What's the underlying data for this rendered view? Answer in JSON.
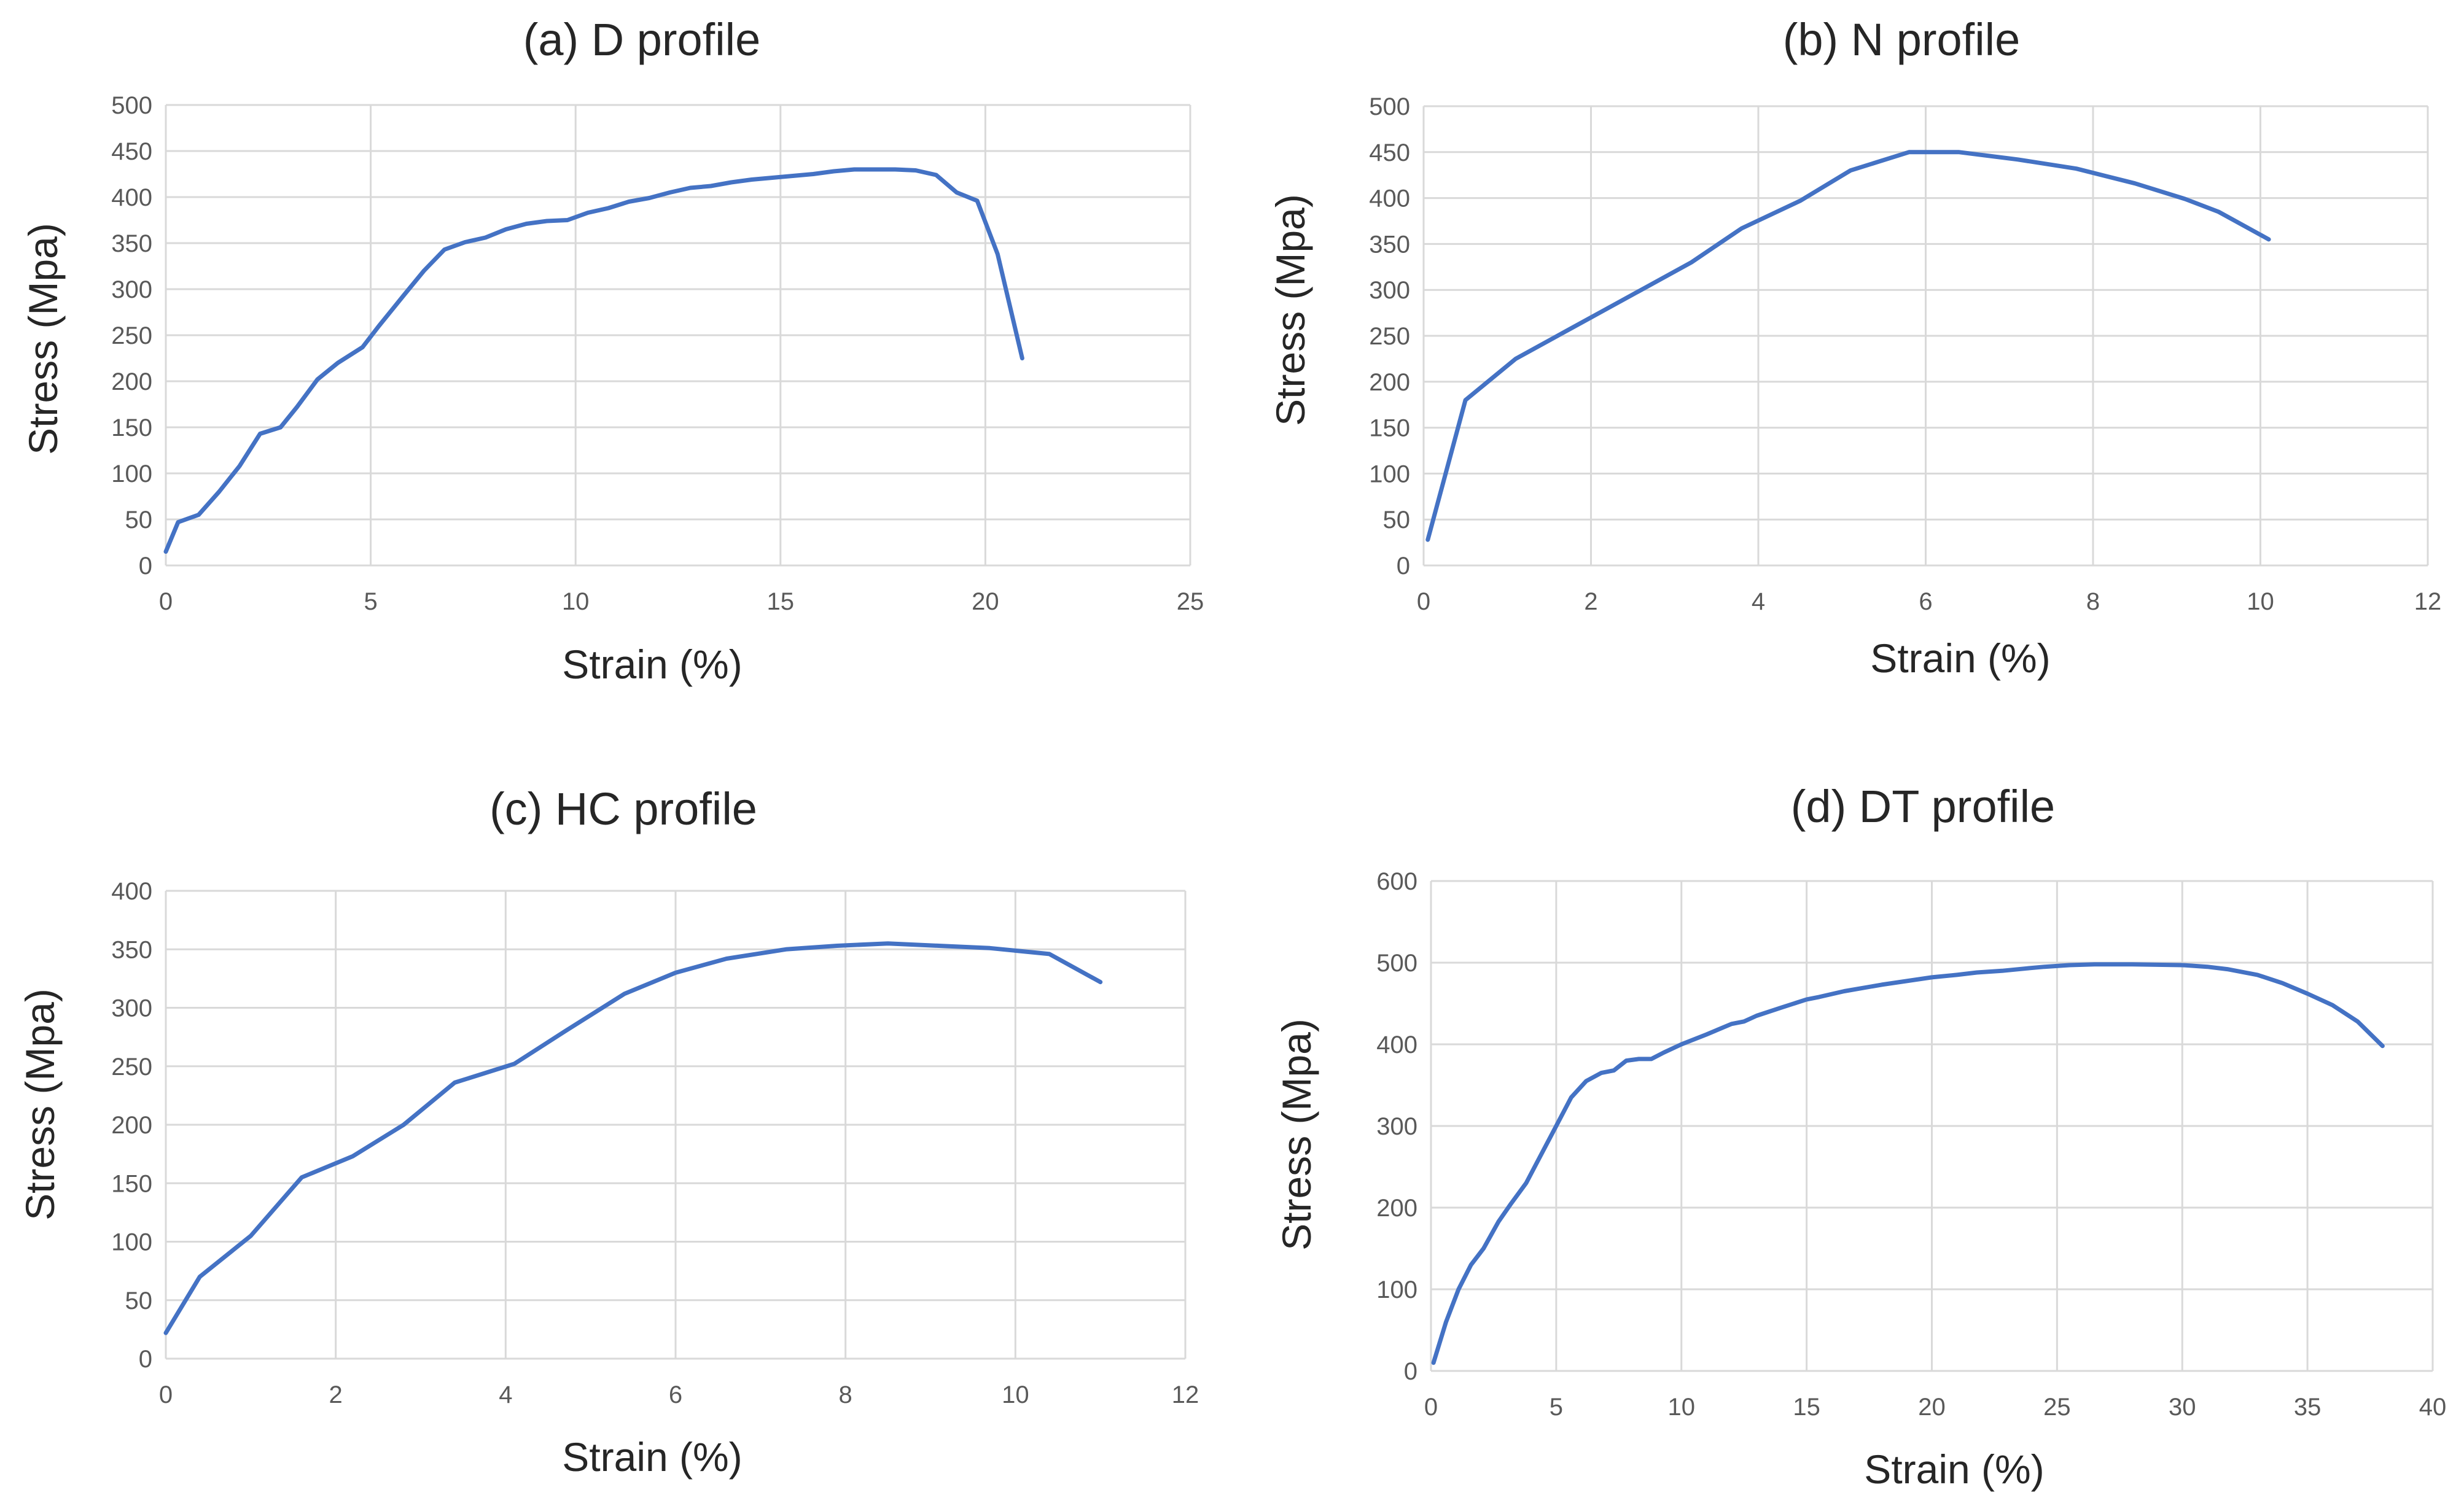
{
  "chart_data": [
    {
      "id": "a",
      "type": "line",
      "title": "(a) D profile",
      "xlabel": "Strain (%)",
      "ylabel": "Stress (Mpa)",
      "xlim": [
        0,
        25
      ],
      "ylim": [
        0,
        500
      ],
      "xticks": [
        "0",
        "5",
        "10",
        "15",
        "20",
        "25"
      ],
      "yticks": [
        "0",
        "50",
        "100",
        "150",
        "200",
        "250",
        "300",
        "350",
        "400",
        "450",
        "500"
      ],
      "grid": true,
      "series": [
        {
          "name": "D profile",
          "x": [
            0,
            0.3,
            0.8,
            1.3,
            1.8,
            2.3,
            2.8,
            3.2,
            3.7,
            4.2,
            4.8,
            5.2,
            5.8,
            6.3,
            6.8,
            7.3,
            7.8,
            8.3,
            8.8,
            9.3,
            9.8,
            10.3,
            10.8,
            11.3,
            11.8,
            12.3,
            12.8,
            13.3,
            13.8,
            14.3,
            14.8,
            15.3,
            15.8,
            16.3,
            16.8,
            17.3,
            17.8,
            18.3,
            18.8,
            19.3,
            19.8,
            20.3,
            20.9
          ],
          "y": [
            15,
            47,
            55,
            80,
            108,
            143,
            150,
            172,
            202,
            220,
            237,
            260,
            293,
            320,
            343,
            351,
            356,
            365,
            371,
            374,
            375,
            383,
            388,
            395,
            399,
            405,
            410,
            412,
            416,
            419,
            421,
            423,
            425,
            428,
            430,
            430,
            430,
            429,
            424,
            405,
            396,
            338,
            225
          ]
        }
      ]
    },
    {
      "id": "b",
      "type": "line",
      "title": "(b) N profile",
      "xlabel": "Strain (%)",
      "ylabel": "Stress (Mpa)",
      "xlim": [
        0,
        12
      ],
      "ylim": [
        0,
        500
      ],
      "xticks": [
        "0",
        "2",
        "4",
        "6",
        "8",
        "10",
        "12"
      ],
      "yticks": [
        "0",
        "50",
        "100",
        "150",
        "200",
        "250",
        "300",
        "350",
        "400",
        "450",
        "500"
      ],
      "grid": true,
      "series": [
        {
          "name": "N profile",
          "x": [
            0.05,
            0.5,
            1.1,
            1.8,
            2.5,
            3.2,
            3.8,
            4.5,
            5.1,
            5.8,
            6.4,
            7.1,
            7.8,
            8.5,
            9.1,
            9.5,
            10.1
          ],
          "y": [
            28,
            180,
            225,
            260,
            295,
            330,
            367,
            397,
            430,
            450,
            450,
            442,
            432,
            416,
            399,
            385,
            355
          ]
        }
      ]
    },
    {
      "id": "c",
      "type": "line",
      "title": "(c) HC profile",
      "xlabel": "Strain (%)",
      "ylabel": "Stress (Mpa)",
      "xlim": [
        0,
        12
      ],
      "ylim": [
        0,
        400
      ],
      "xticks": [
        "0",
        "2",
        "4",
        "6",
        "8",
        "10",
        "12"
      ],
      "yticks": [
        "0",
        "50",
        "100",
        "150",
        "200",
        "250",
        "300",
        "350",
        "400"
      ],
      "grid": true,
      "series": [
        {
          "name": "HC profile",
          "x": [
            0,
            0.4,
            1.0,
            1.6,
            2.2,
            2.8,
            3.4,
            4.1,
            4.7,
            5.4,
            6.0,
            6.6,
            7.3,
            7.9,
            8.5,
            9.1,
            9.7,
            10.4,
            11.0
          ],
          "y": [
            22,
            70,
            105,
            155,
            173,
            200,
            236,
            252,
            280,
            312,
            330,
            342,
            350,
            353,
            355,
            353,
            351,
            346,
            322
          ]
        }
      ]
    },
    {
      "id": "d",
      "type": "line",
      "title": "(d) DT profile",
      "xlabel": "Strain (%)",
      "ylabel": "Stress (Mpa)",
      "xlim": [
        0,
        40
      ],
      "ylim": [
        0,
        600
      ],
      "xticks": [
        "0",
        "5",
        "10",
        "15",
        "20",
        "25",
        "30",
        "35",
        "40"
      ],
      "yticks": [
        "0",
        "100",
        "200",
        "300",
        "400",
        "500",
        "600"
      ],
      "grid": true,
      "series": [
        {
          "name": "DT profile",
          "x": [
            0.1,
            0.6,
            1.1,
            1.6,
            2.1,
            2.7,
            3.2,
            3.8,
            4.4,
            5.0,
            5.6,
            6.2,
            6.8,
            7.3,
            7.8,
            8.3,
            8.8,
            9.3,
            10.0,
            11.0,
            12.0,
            12.5,
            13.0,
            14.0,
            15.0,
            15.5,
            16.5,
            18.0,
            20.0,
            21.0,
            21.8,
            22.8,
            23.8,
            24.5,
            25.5,
            26.5,
            28.0,
            30.0,
            31.0,
            31.8,
            33.0,
            34.0,
            35.0,
            36.0,
            37.0,
            38.0
          ],
          "y": [
            10,
            60,
            100,
            130,
            150,
            183,
            205,
            230,
            265,
            300,
            335,
            355,
            365,
            368,
            380,
            382,
            382,
            390,
            400,
            412,
            425,
            428,
            435,
            445,
            455,
            458,
            465,
            473,
            482,
            485,
            488,
            490,
            493,
            495,
            497,
            498,
            498,
            497,
            495,
            492,
            485,
            475,
            462,
            448,
            428,
            398
          ]
        }
      ]
    }
  ]
}
